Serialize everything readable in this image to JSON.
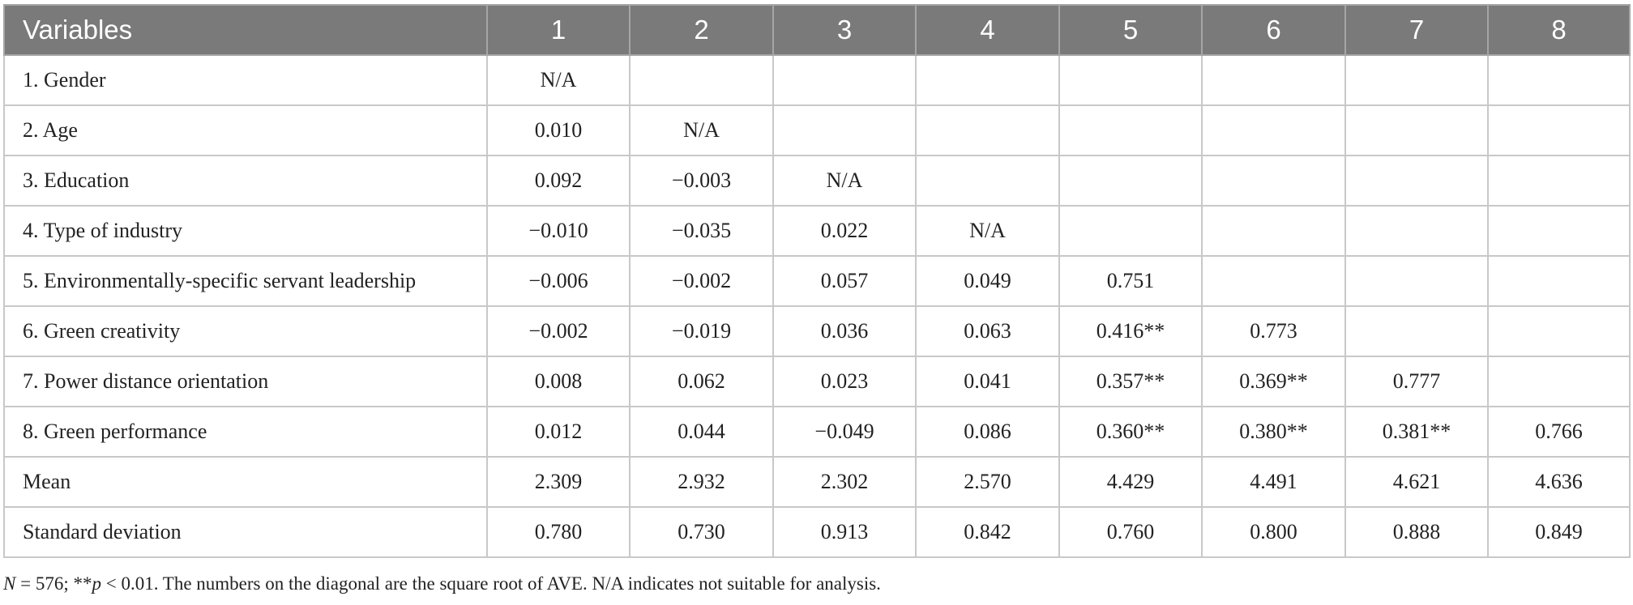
{
  "table": {
    "headers": [
      "Variables",
      "1",
      "2",
      "3",
      "4",
      "5",
      "6",
      "7",
      "8"
    ],
    "rows": [
      {
        "label": "1. Gender",
        "cells": [
          "N/A",
          "",
          "",
          "",
          "",
          "",
          "",
          ""
        ]
      },
      {
        "label": "2. Age",
        "cells": [
          "0.010",
          "N/A",
          "",
          "",
          "",
          "",
          "",
          ""
        ]
      },
      {
        "label": "3. Education",
        "cells": [
          "0.092",
          "−0.003",
          "N/A",
          "",
          "",
          "",
          "",
          ""
        ]
      },
      {
        "label": "4. Type of industry",
        "cells": [
          "−0.010",
          "−0.035",
          "0.022",
          "N/A",
          "",
          "",
          "",
          ""
        ]
      },
      {
        "label": "5. Environmentally-specific servant leadership",
        "cells": [
          "−0.006",
          "−0.002",
          "0.057",
          "0.049",
          "0.751",
          "",
          "",
          ""
        ]
      },
      {
        "label": "6. Green creativity",
        "cells": [
          "−0.002",
          "−0.019",
          "0.036",
          "0.063",
          "0.416**",
          "0.773",
          "",
          ""
        ]
      },
      {
        "label": "7. Power distance orientation",
        "cells": [
          "0.008",
          "0.062",
          "0.023",
          "0.041",
          "0.357**",
          "0.369**",
          "0.777",
          ""
        ]
      },
      {
        "label": "8. Green performance",
        "cells": [
          "0.012",
          "0.044",
          "−0.049",
          "0.086",
          "0.360**",
          "0.380**",
          "0.381**",
          "0.766"
        ]
      },
      {
        "label": "Mean",
        "cells": [
          "2.309",
          "2.932",
          "2.302",
          "2.570",
          "4.429",
          "4.491",
          "4.621",
          "4.636"
        ]
      },
      {
        "label": "Standard deviation",
        "cells": [
          "0.780",
          "0.730",
          "0.913",
          "0.842",
          "0.760",
          "0.800",
          "0.888",
          "0.849"
        ]
      }
    ]
  },
  "footnote": {
    "n_symbol": "N",
    "n_value": " = 576; **",
    "p_symbol": "p",
    "rest": " < 0.01. The numbers on the diagonal are the square root of AVE. N/A indicates not suitable for analysis."
  }
}
